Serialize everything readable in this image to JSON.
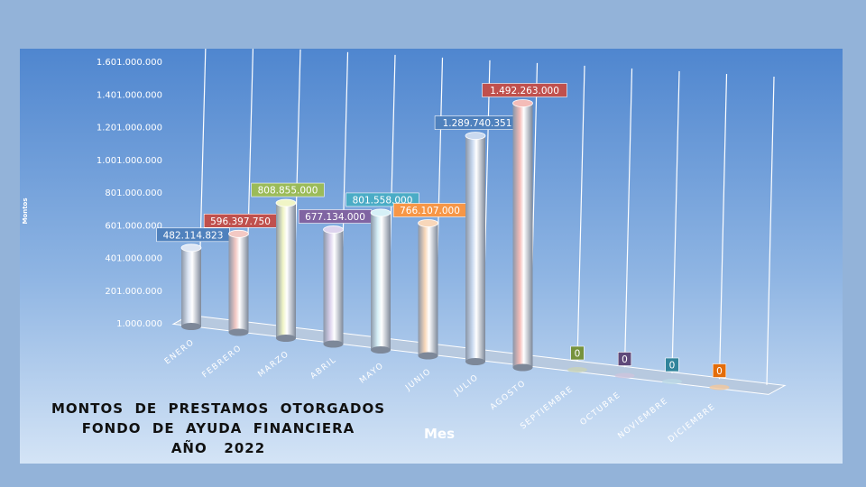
{
  "chart_data": {
    "type": "bar",
    "title_lines": [
      "MONTOS  DE  PRESTAMOS  OTORGADOS",
      "FONDO  DE  AYUDA  FINANCIERA",
      "AÑO   2022"
    ],
    "xlabel": "Mes",
    "ylabel": "Montos",
    "categories": [
      "ENERO",
      "FEBRERO",
      "MARZO",
      "ABRIL",
      "MAYO",
      "JUNIO",
      "JULIO",
      "AGOSTO",
      "SEPTIEMBRE",
      "OCTUBRE",
      "NOVIEMBRE",
      "DICIEMBRE"
    ],
    "values": [
      482114823,
      596397750,
      808855000,
      677134000,
      801558000,
      766107000,
      1289740351,
      1492263000,
      0,
      0,
      0,
      0
    ],
    "value_labels": [
      "482.114.823",
      "596.397.750",
      "808.855.000",
      "677.134.000",
      "801.558.000",
      "766.107.000",
      "1.289.740.351",
      "1.492.263.000",
      "0",
      "0",
      "0",
      "0"
    ],
    "yticks": [
      "1.000.000",
      "201.000.000",
      "401.000.000",
      "601.000.000",
      "801.000.000",
      "1.001.000.000",
      "1.201.000.000",
      "1.401.000.000",
      "1.601.000.000"
    ],
    "ylim": [
      1000000,
      1601000000
    ],
    "grid": true,
    "colors": [
      "#dde6f4",
      "#f3c9c4",
      "#f0f5c6",
      "#ddd4ee",
      "#d6f0f7",
      "#f8d7ba",
      "#c9d9ef",
      "#f4bcb8",
      "#c9d3b5",
      "#cdc4dc",
      "#bcd9e6",
      "#f2c89c"
    ],
    "label_colors": [
      "#4f81bd",
      "#c0504d",
      "#9bbb59",
      "#8064a2",
      "#4bacc6",
      "#f79646",
      "#4f81bd",
      "#c0504d",
      "#76923c",
      "#5f497a",
      "#31849b",
      "#e36c09"
    ]
  }
}
